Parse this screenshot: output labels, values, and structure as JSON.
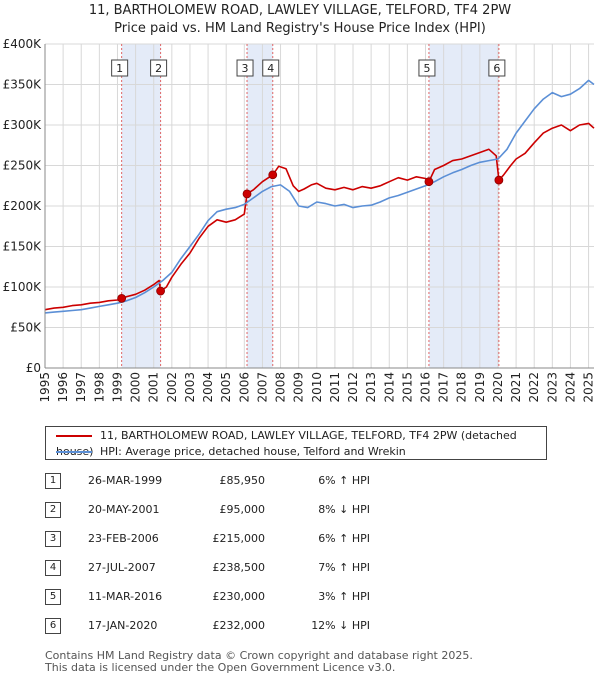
{
  "title_line1": "11, BARTHOLOMEW ROAD, LAWLEY VILLAGE, TELFORD, TF4 2PW",
  "title_line2": "Price paid vs. HM Land Registry's House Price Index (HPI)",
  "legend": {
    "property": "11, BARTHOLOMEW ROAD, LAWLEY VILLAGE, TELFORD, TF4 2PW (detached house)",
    "hpi": "HPI: Average price, detached house, Telford and Wrekin"
  },
  "sales": [
    {
      "num": "1",
      "date": "26-MAR-1999",
      "price": "£85,950",
      "hpi": "6% ↑ HPI"
    },
    {
      "num": "2",
      "date": "20-MAY-2001",
      "price": "£95,000",
      "hpi": "8% ↓ HPI"
    },
    {
      "num": "3",
      "date": "23-FEB-2006",
      "price": "£215,000",
      "hpi": "6% ↑ HPI"
    },
    {
      "num": "4",
      "date": "27-JUL-2007",
      "price": "£238,500",
      "hpi": "7% ↑ HPI"
    },
    {
      "num": "5",
      "date": "11-MAR-2016",
      "price": "£230,000",
      "hpi": "3% ↑ HPI"
    },
    {
      "num": "6",
      "date": "17-JAN-2020",
      "price": "£232,000",
      "hpi": "12% ↓ HPI"
    }
  ],
  "footer_line1": "Contains HM Land Registry data © Crown copyright and database right 2025.",
  "footer_line2": "This data is licensed under the Open Government Licence v3.0.",
  "chart_data": {
    "type": "line",
    "title": "11, BARTHOLOMEW ROAD, LAWLEY VILLAGE, TELFORD, TF4 2PW — Price paid vs. HM Land Registry's House Price Index (HPI)",
    "xlim": [
      1995,
      2025.3
    ],
    "ylim": [
      0,
      400000
    ],
    "y_ticks": [
      0,
      50000,
      100000,
      150000,
      200000,
      250000,
      300000,
      350000,
      400000
    ],
    "y_tick_labels": [
      "£0",
      "£50K",
      "£100K",
      "£150K",
      "£200K",
      "£250K",
      "£300K",
      "£350K",
      "£400K"
    ],
    "x_ticks": [
      1995,
      1996,
      1997,
      1998,
      1999,
      2000,
      2001,
      2002,
      2003,
      2004,
      2005,
      2006,
      2007,
      2008,
      2009,
      2010,
      2011,
      2012,
      2013,
      2014,
      2015,
      2016,
      2017,
      2018,
      2019,
      2020,
      2021,
      2022,
      2023,
      2024,
      2025
    ],
    "grid": true,
    "legend_position": "below",
    "colors": {
      "property": "#cc0000",
      "hpi": "#5b8fd6",
      "shade": "#dde6f6",
      "marker": "#cc0000"
    },
    "shaded_periods": [
      [
        1999.23,
        2001.38
      ],
      [
        2006.15,
        2007.57
      ],
      [
        2016.19,
        2020.05
      ]
    ],
    "sale_points": [
      {
        "label": "1",
        "x": 1999.23,
        "y": 85950
      },
      {
        "label": "2",
        "x": 2001.38,
        "y": 95000
      },
      {
        "label": "3",
        "x": 2006.15,
        "y": 215000
      },
      {
        "label": "4",
        "x": 2007.57,
        "y": 238500
      },
      {
        "label": "5",
        "x": 2016.19,
        "y": 230000
      },
      {
        "label": "6",
        "x": 2020.05,
        "y": 232000
      }
    ],
    "series": [
      {
        "name": "11, BARTHOLOMEW ROAD, LAWLEY VILLAGE, TELFORD, TF4 2PW (detached house)",
        "key": "property",
        "x": [
          1995,
          1995.5,
          1996,
          1996.5,
          1997,
          1997.5,
          1998,
          1998.5,
          1999,
          1999.23,
          1999.5,
          2000,
          2000.5,
          2001,
          2001.3,
          2001.38,
          2001.7,
          2002,
          2002.5,
          2003,
          2003.5,
          2004,
          2004.5,
          2005,
          2005.5,
          2006,
          2006.15,
          2006.5,
          2007,
          2007.57,
          2007.9,
          2008.3,
          2008.7,
          2009,
          2009.3,
          2009.7,
          2010,
          2010.5,
          2011,
          2011.5,
          2012,
          2012.5,
          2013,
          2013.5,
          2014,
          2014.5,
          2015,
          2015.5,
          2016,
          2016.19,
          2016.5,
          2017,
          2017.5,
          2018,
          2018.5,
          2019,
          2019.5,
          2019.9,
          2020.05,
          2020.3,
          2020.7,
          2021,
          2021.5,
          2022,
          2022.5,
          2023,
          2023.5,
          2024,
          2024.5,
          2025,
          2025.3
        ],
        "y": [
          72000,
          74000,
          75000,
          77000,
          78000,
          80000,
          81000,
          83000,
          84000,
          85950,
          88000,
          91000,
          96000,
          103000,
          108000,
          95000,
          100000,
          112000,
          128000,
          142000,
          160000,
          175000,
          183000,
          180000,
          183000,
          190000,
          215000,
          220000,
          230000,
          238500,
          249000,
          246000,
          225000,
          218000,
          221000,
          226000,
          228000,
          222000,
          220000,
          223000,
          220000,
          224000,
          222000,
          225000,
          230000,
          235000,
          232000,
          236000,
          234000,
          230000,
          245000,
          250000,
          256000,
          258000,
          262000,
          266000,
          270000,
          262000,
          232000,
          238000,
          250000,
          258000,
          265000,
          278000,
          290000,
          296000,
          300000,
          293000,
          300000,
          302000,
          296000
        ]
      },
      {
        "name": "HPI: Average price, detached house, Telford and Wrekin",
        "key": "hpi",
        "x": [
          1995,
          1995.5,
          1996,
          1996.5,
          1997,
          1997.5,
          1998,
          1998.5,
          1999,
          1999.5,
          2000,
          2000.5,
          2001,
          2001.5,
          2002,
          2002.5,
          2003,
          2003.5,
          2004,
          2004.5,
          2005,
          2005.5,
          2006,
          2006.5,
          2007,
          2007.5,
          2008,
          2008.5,
          2009,
          2009.5,
          2010,
          2010.5,
          2011,
          2011.5,
          2012,
          2012.5,
          2013,
          2013.5,
          2014,
          2014.5,
          2015,
          2015.5,
          2016,
          2016.5,
          2017,
          2017.5,
          2018,
          2018.5,
          2019,
          2019.5,
          2020,
          2020.5,
          2021,
          2021.5,
          2022,
          2022.5,
          2023,
          2023.5,
          2024,
          2024.5,
          2025,
          2025.3
        ],
        "y": [
          68000,
          69000,
          70000,
          71000,
          72000,
          74000,
          76000,
          78000,
          80000,
          83000,
          87000,
          93000,
          100000,
          108000,
          118000,
          135000,
          150000,
          165000,
          182000,
          193000,
          196000,
          198000,
          202000,
          210000,
          218000,
          224000,
          226000,
          218000,
          200000,
          198000,
          205000,
          203000,
          200000,
          202000,
          198000,
          200000,
          201000,
          205000,
          210000,
          213000,
          217000,
          221000,
          225000,
          230000,
          236000,
          241000,
          245000,
          250000,
          254000,
          256000,
          258000,
          270000,
          290000,
          305000,
          320000,
          332000,
          340000,
          335000,
          338000,
          345000,
          355000,
          350000
        ]
      }
    ]
  }
}
